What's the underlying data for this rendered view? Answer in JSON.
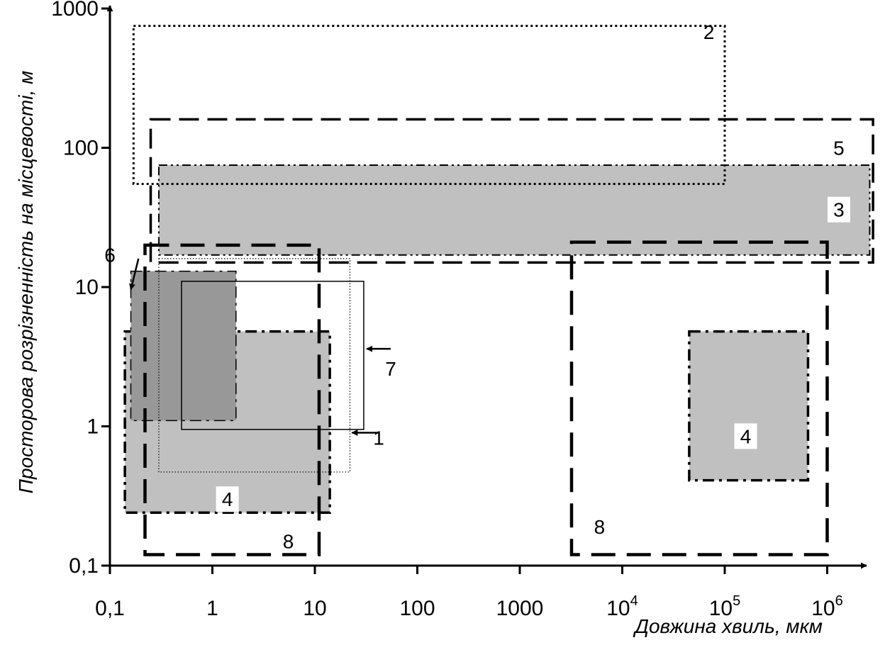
{
  "chart_data": {
    "type": "region",
    "title": "",
    "xlabel": "Довжина  хвиль,  мкм",
    "ylabel": "Просторова розрізненність на місцевості,  м",
    "x_scale": "log",
    "y_scale": "log",
    "xlim": [
      0.1,
      3000000
    ],
    "ylim": [
      0.1,
      1400
    ],
    "x_ticks": [
      {
        "value": 0.1,
        "label": "0,1"
      },
      {
        "value": 1,
        "label": "1"
      },
      {
        "value": 10,
        "label": "10"
      },
      {
        "value": 100,
        "label": "100"
      },
      {
        "value": 1000,
        "label": "1000"
      },
      {
        "value": 10000,
        "base": "10",
        "exp": "4"
      },
      {
        "value": 100000,
        "base": "10",
        "exp": "5"
      },
      {
        "value": 1000000,
        "base": "10",
        "exp": "6"
      }
    ],
    "y_ticks": [
      {
        "value": 0.1,
        "label": "0,1"
      },
      {
        "value": 1,
        "label": "1"
      },
      {
        "value": 10,
        "label": "10"
      },
      {
        "value": 100,
        "label": "100"
      },
      {
        "value": 1000,
        "label": "1000"
      }
    ],
    "regions": [
      {
        "label": "3",
        "x": [
          0.3,
          2600000
        ],
        "y": [
          17,
          75
        ],
        "fill": "#c0c0c0",
        "stroke": "#000000",
        "style": "dashdotdot",
        "width": 2
      },
      {
        "label": "4",
        "x": [
          0.14,
          14
        ],
        "y": [
          0.24,
          4.8
        ],
        "fill": "#c0c0c0",
        "stroke": "#000000",
        "style": "dashdot",
        "width": 3.5
      },
      {
        "label": "4",
        "x": [
          45000,
          650000
        ],
        "y": [
          0.41,
          4.8
        ],
        "fill": "#c0c0c0",
        "stroke": "#000000",
        "style": "dashdot",
        "width": 3.5
      },
      {
        "label": "6",
        "x": [
          0.16,
          1.7
        ],
        "y": [
          1.1,
          13
        ],
        "fill": "#989898",
        "stroke": "#000000",
        "style": "dashdot",
        "width": 1.5
      },
      {
        "label": "2",
        "x": [
          0.17,
          100000
        ],
        "y": [
          55,
          750
        ],
        "fill": "none",
        "stroke": "#000000",
        "style": "dotted",
        "width": 3
      },
      {
        "label": "5",
        "x": [
          0.25,
          2800000
        ],
        "y": [
          15,
          160
        ],
        "fill": "none",
        "stroke": "#000000",
        "style": "dashed",
        "width": 3.5
      },
      {
        "label": "1",
        "x": [
          0.3,
          22
        ],
        "y": [
          0.47,
          16
        ],
        "fill": "none",
        "stroke": "#000000",
        "style": "finedotted",
        "width": 1.2
      },
      {
        "label": "7",
        "x": [
          0.5,
          30
        ],
        "y": [
          0.95,
          11
        ],
        "fill": "none",
        "stroke": "#000000",
        "style": "solid",
        "width": 1.5
      },
      {
        "label": "8",
        "x": [
          0.22,
          11
        ],
        "y": [
          0.12,
          20
        ],
        "fill": "none",
        "stroke": "#000000",
        "style": "longdashed",
        "width": 4.5
      },
      {
        "label": "8",
        "x": [
          3200,
          1000000
        ],
        "y": [
          0.12,
          21
        ],
        "fill": "none",
        "stroke": "#000000",
        "style": "longdashed",
        "width": 4.5
      }
    ],
    "labels": [
      {
        "text": "2",
        "x": 70000,
        "y": 680,
        "box": false
      },
      {
        "text": "5",
        "x": 1300000,
        "y": 100,
        "box": false
      },
      {
        "text": "3",
        "x": 1300000,
        "y": 36,
        "box": true
      },
      {
        "text": "6",
        "x": 0.1,
        "y": 17,
        "box": false
      },
      {
        "text": "7",
        "x": 55,
        "y": 2.6,
        "box": false
      },
      {
        "text": "1",
        "x": 42,
        "y": 0.83,
        "box": false
      },
      {
        "text": "4",
        "x": 1.4,
        "y": 0.3,
        "box": true
      },
      {
        "text": "4",
        "x": 160000,
        "y": 0.85,
        "box": true
      },
      {
        "text": "8",
        "x": 5.5,
        "y": 0.15,
        "box": false
      },
      {
        "text": "8",
        "x": 6000,
        "y": 0.19,
        "box": false
      }
    ],
    "arrows": [
      {
        "label": "6",
        "from": [
          0.19,
          16
        ],
        "to": [
          0.16,
          9.6
        ]
      },
      {
        "label": "7",
        "from": [
          55,
          3.6
        ],
        "to": [
          32,
          3.6
        ]
      },
      {
        "label": "1",
        "from": [
          42,
          0.9
        ],
        "to": [
          23,
          0.9
        ]
      }
    ],
    "grid": false,
    "legend": "none"
  }
}
